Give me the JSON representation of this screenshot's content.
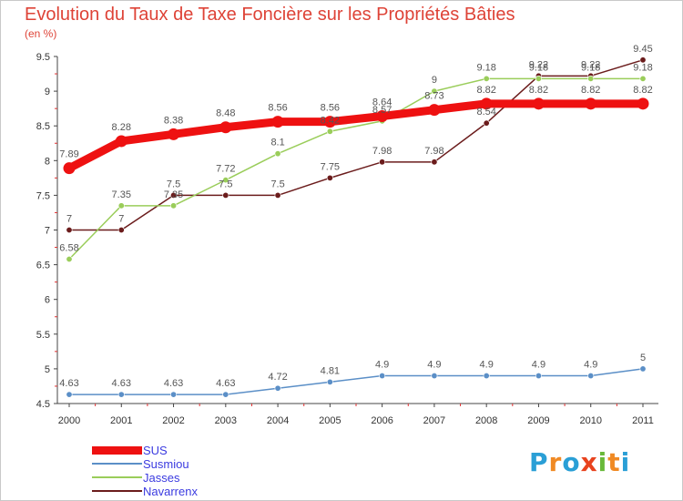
{
  "title": "Evolution du Taux de Taxe Foncière sur les Propriétés Bâties",
  "unit": "(en %)",
  "logo": {
    "text": "Proxiti",
    "letters": [
      "P",
      "r",
      "o",
      "x",
      "i",
      "t",
      "i"
    ],
    "colors": [
      "#2a9fd6",
      "#f08a24",
      "#2a9fd6",
      "#e8431e",
      "#69b93a",
      "#f08a24",
      "#2a9fd6"
    ]
  },
  "chart_data": {
    "type": "line",
    "x": [
      "2000",
      "2001",
      "2002",
      "2003",
      "2004",
      "2005",
      "2006",
      "2007",
      "2008",
      "2009",
      "2010",
      "2011"
    ],
    "ylim": [
      4.5,
      9.5
    ],
    "yticks": [
      "4.5",
      "5",
      "5.5",
      "6",
      "6.5",
      "7",
      "7.5",
      "8",
      "8.5",
      "9",
      "9.5"
    ],
    "grid": false,
    "legend_position": "bottom-left",
    "series": [
      {
        "name": "SUS",
        "color": "#ee1111",
        "emphasis": true,
        "values": [
          7.89,
          8.28,
          8.38,
          8.48,
          8.56,
          8.56,
          8.64,
          8.73,
          8.82,
          8.82,
          8.82,
          8.82
        ],
        "labels": [
          "7.89",
          "8.28",
          "8.38",
          "8.48",
          "8.56",
          "8.56",
          "8.64",
          "8.73",
          "8.82",
          "8.82",
          "8.82",
          "8.82"
        ]
      },
      {
        "name": "Susmiou",
        "color": "#5b8fc7",
        "emphasis": false,
        "values": [
          4.63,
          4.63,
          4.63,
          4.63,
          4.72,
          4.81,
          4.9,
          4.9,
          4.9,
          4.9,
          4.9,
          5
        ],
        "labels": [
          "4.63",
          "4.63",
          "4.63",
          "4.63",
          "4.72",
          "4.81",
          "4.9",
          "4.9",
          "4.9",
          "4.9",
          "4.9",
          "5"
        ]
      },
      {
        "name": "Jasses",
        "color": "#9acd5a",
        "emphasis": false,
        "values": [
          6.58,
          7.35,
          7.35,
          7.72,
          8.1,
          8.42,
          8.57,
          9,
          9.18,
          9.18,
          9.18,
          9.18
        ],
        "labels": [
          "6.58",
          "7.35",
          "7.35",
          "7.72",
          "8.1",
          "8.42",
          "8.57",
          "9",
          "9.18",
          "9.18",
          "9.18",
          "9.18"
        ]
      },
      {
        "name": "Navarrenx",
        "color": "#6b1c1c",
        "emphasis": false,
        "values": [
          7,
          7,
          7.5,
          7.5,
          7.5,
          7.75,
          7.98,
          7.98,
          8.54,
          9.22,
          9.22,
          9.45
        ],
        "labels": [
          "7",
          "7",
          "7.5",
          "7.5",
          "7.5",
          "7.75",
          "7.98",
          "7.98",
          "8.54",
          "9.22",
          "9.22",
          "9.45"
        ]
      }
    ]
  }
}
